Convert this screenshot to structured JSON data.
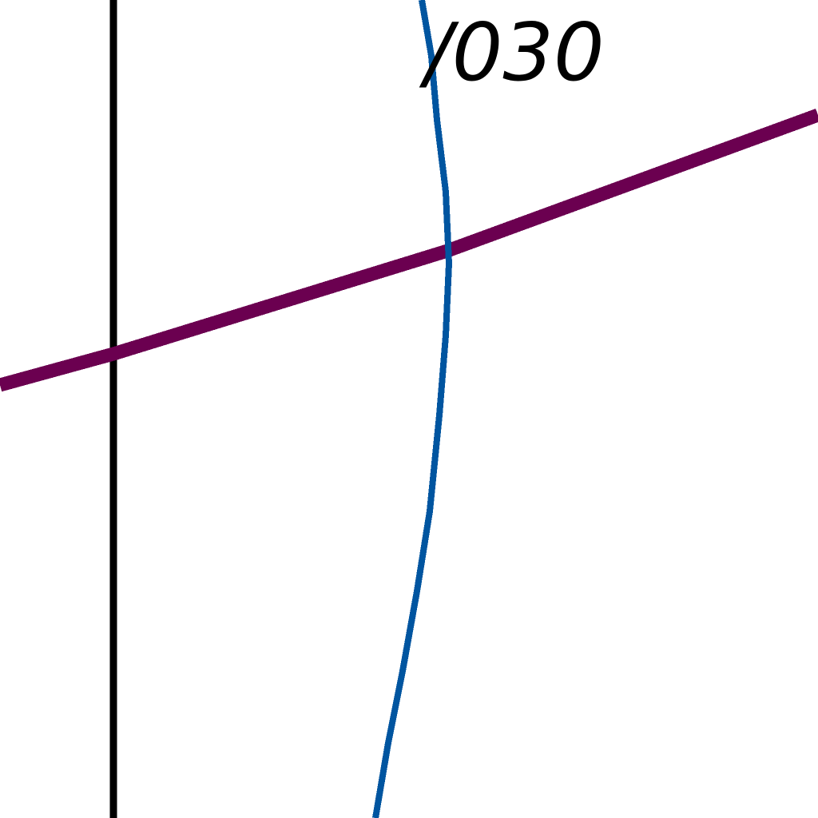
{
  "map": {
    "background_color": "#ffffff",
    "features": [
      {
        "name": "black-line",
        "color": "#000000"
      },
      {
        "name": "purple-road",
        "color": "#6b0050"
      },
      {
        "name": "blue-river",
        "color": "#0055a0"
      }
    ],
    "labels": {
      "route_label": "/030"
    }
  }
}
